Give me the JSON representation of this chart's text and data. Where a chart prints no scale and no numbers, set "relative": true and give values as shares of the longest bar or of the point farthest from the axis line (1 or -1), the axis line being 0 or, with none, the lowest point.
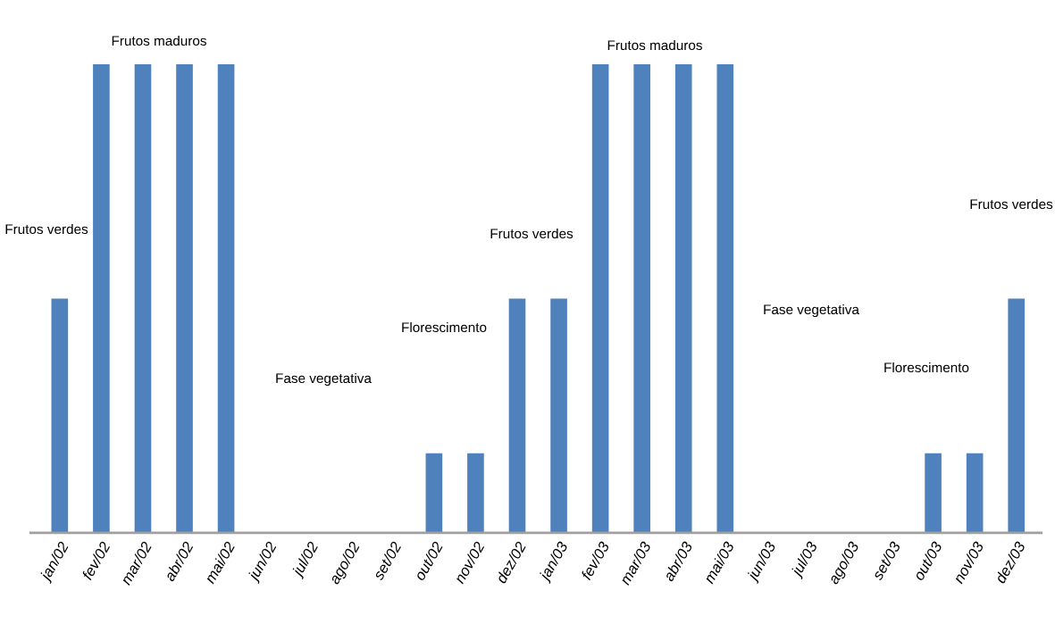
{
  "chart_data": {
    "type": "bar",
    "relative": true,
    "color": "#4f81bd",
    "categories": [
      "jan/02",
      "fev/02",
      "mar/02",
      "abr/02",
      "mai/02",
      "jun/02",
      "jul/02",
      "ago/02",
      "set/02",
      "out/02",
      "nov/02",
      "dez/02",
      "jan/03",
      "fev/03",
      "mar/03",
      "abr/03",
      "mai/03",
      "jun/03",
      "jul/03",
      "ago/03",
      "set/03",
      "out/03",
      "nov/03",
      "dez/03"
    ],
    "values": [
      0.5,
      1,
      1,
      1,
      1,
      0,
      0,
      0,
      0,
      0.17,
      0.17,
      0.5,
      0.5,
      1,
      1,
      1,
      1,
      0,
      0,
      0,
      0,
      0.17,
      0.17,
      0.5
    ],
    "annotations": [
      "Frutos verdes",
      "Frutos maduros",
      "Fase vegetativa",
      "Florescimento",
      "Frutos verdes",
      "Frutos maduros",
      "Fase vegetativa",
      "Florescimento",
      "Frutos verdes"
    ]
  }
}
